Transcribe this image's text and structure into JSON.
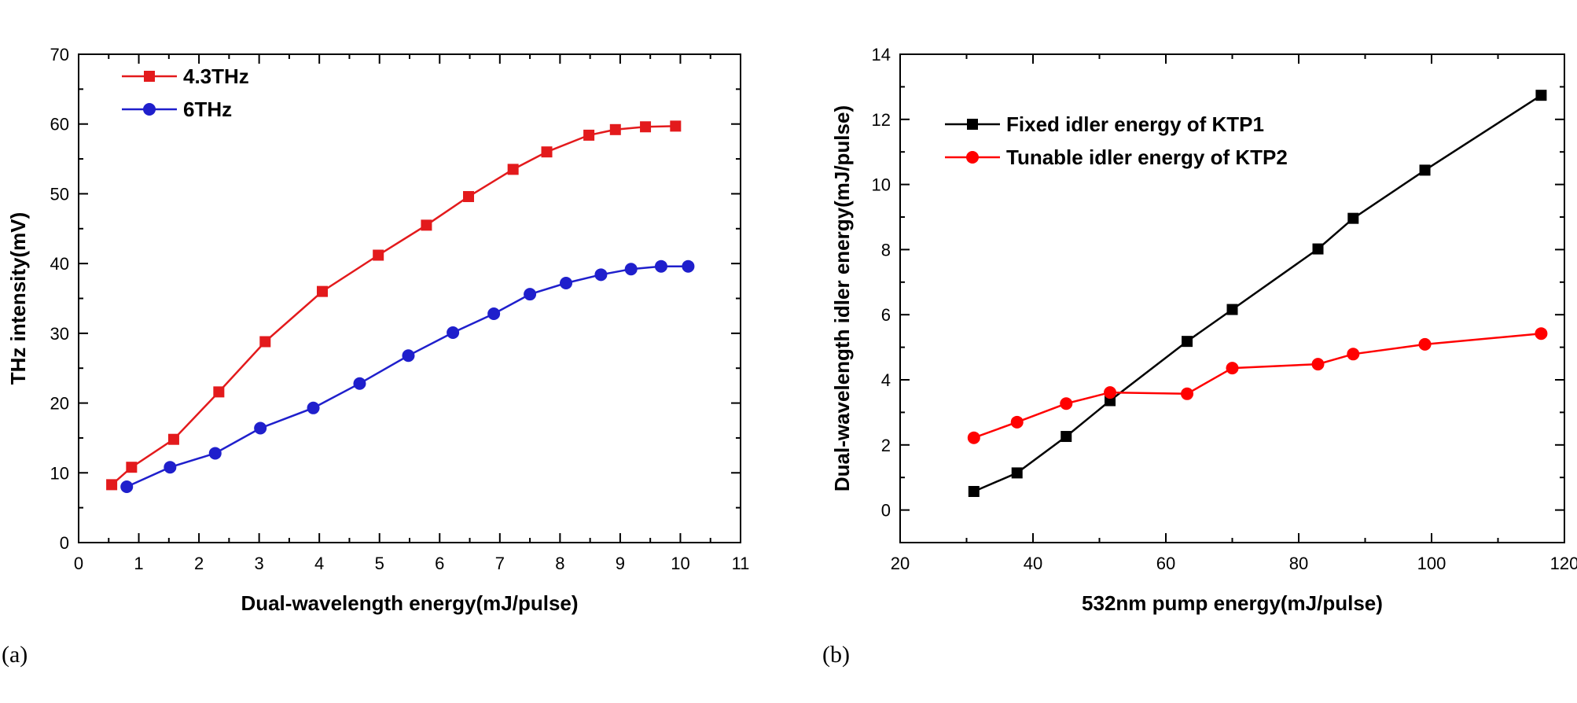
{
  "panels": [
    "(a)",
    "(b)"
  ],
  "chart_data": [
    {
      "type": "line",
      "panel": "(a)",
      "title": "",
      "xlabel": "Dual-wavelength energy(mJ/pulse)",
      "ylabel": "THz intensity(mV)",
      "xlim": [
        0,
        11
      ],
      "ylim": [
        0,
        70
      ],
      "xticks": [
        0,
        1,
        2,
        3,
        4,
        5,
        6,
        7,
        8,
        9,
        10,
        11
      ],
      "yticks": [
        0,
        10,
        20,
        30,
        40,
        50,
        60,
        70
      ],
      "grid": false,
      "legend_position": "top-left",
      "series": [
        {
          "name": "4.3THz",
          "color": "#e31a1c",
          "marker": "square",
          "x": [
            0.55,
            0.88,
            1.58,
            2.33,
            3.1,
            4.05,
            4.98,
            5.78,
            6.48,
            7.22,
            7.78,
            8.48,
            8.92,
            9.42,
            9.92
          ],
          "y": [
            8.3,
            10.8,
            14.8,
            21.6,
            28.8,
            36.0,
            41.2,
            45.5,
            49.6,
            53.5,
            56.0,
            58.4,
            59.2,
            59.6,
            59.7
          ]
        },
        {
          "name": "6THz",
          "color": "#1f1fcc",
          "marker": "circle",
          "x": [
            0.8,
            1.52,
            2.27,
            3.02,
            3.9,
            4.67,
            5.48,
            6.22,
            6.9,
            7.5,
            8.1,
            8.68,
            9.18,
            9.68,
            10.13
          ],
          "y": [
            8.0,
            10.8,
            12.8,
            16.4,
            19.3,
            22.8,
            26.8,
            30.1,
            32.8,
            35.6,
            37.2,
            38.4,
            39.2,
            39.6,
            39.6
          ]
        }
      ]
    },
    {
      "type": "line",
      "panel": "(b)",
      "title": "",
      "xlabel": "532nm pump energy(mJ/pulse)",
      "ylabel": "Dual-wavelength idler energy(mJ/pulse)",
      "xlim": [
        20,
        120
      ],
      "ylim": [
        -1,
        14
      ],
      "xticks": [
        20,
        40,
        60,
        80,
        100,
        120
      ],
      "yticks": [
        0,
        2,
        4,
        6,
        8,
        10,
        12,
        14
      ],
      "grid": false,
      "legend_position": "top-left",
      "series": [
        {
          "name": "Fixed idler energy of KTP1",
          "color": "#000000",
          "marker": "square",
          "x": [
            31.1,
            37.6,
            45.0,
            51.6,
            63.2,
            70.0,
            82.9,
            88.2,
            99.0,
            116.5
          ],
          "y": [
            0.57,
            1.14,
            2.26,
            3.36,
            5.18,
            6.16,
            8.02,
            8.96,
            10.44,
            12.74
          ]
        },
        {
          "name": "Tunable idler energy of KTP2",
          "color": "#ff0000",
          "marker": "circle",
          "x": [
            31.1,
            37.6,
            45.0,
            51.6,
            63.2,
            70.0,
            82.9,
            88.2,
            99.0,
            116.5
          ],
          "y": [
            2.22,
            2.7,
            3.27,
            3.61,
            3.57,
            4.36,
            4.48,
            4.79,
            5.09,
            5.42
          ]
        }
      ]
    }
  ]
}
